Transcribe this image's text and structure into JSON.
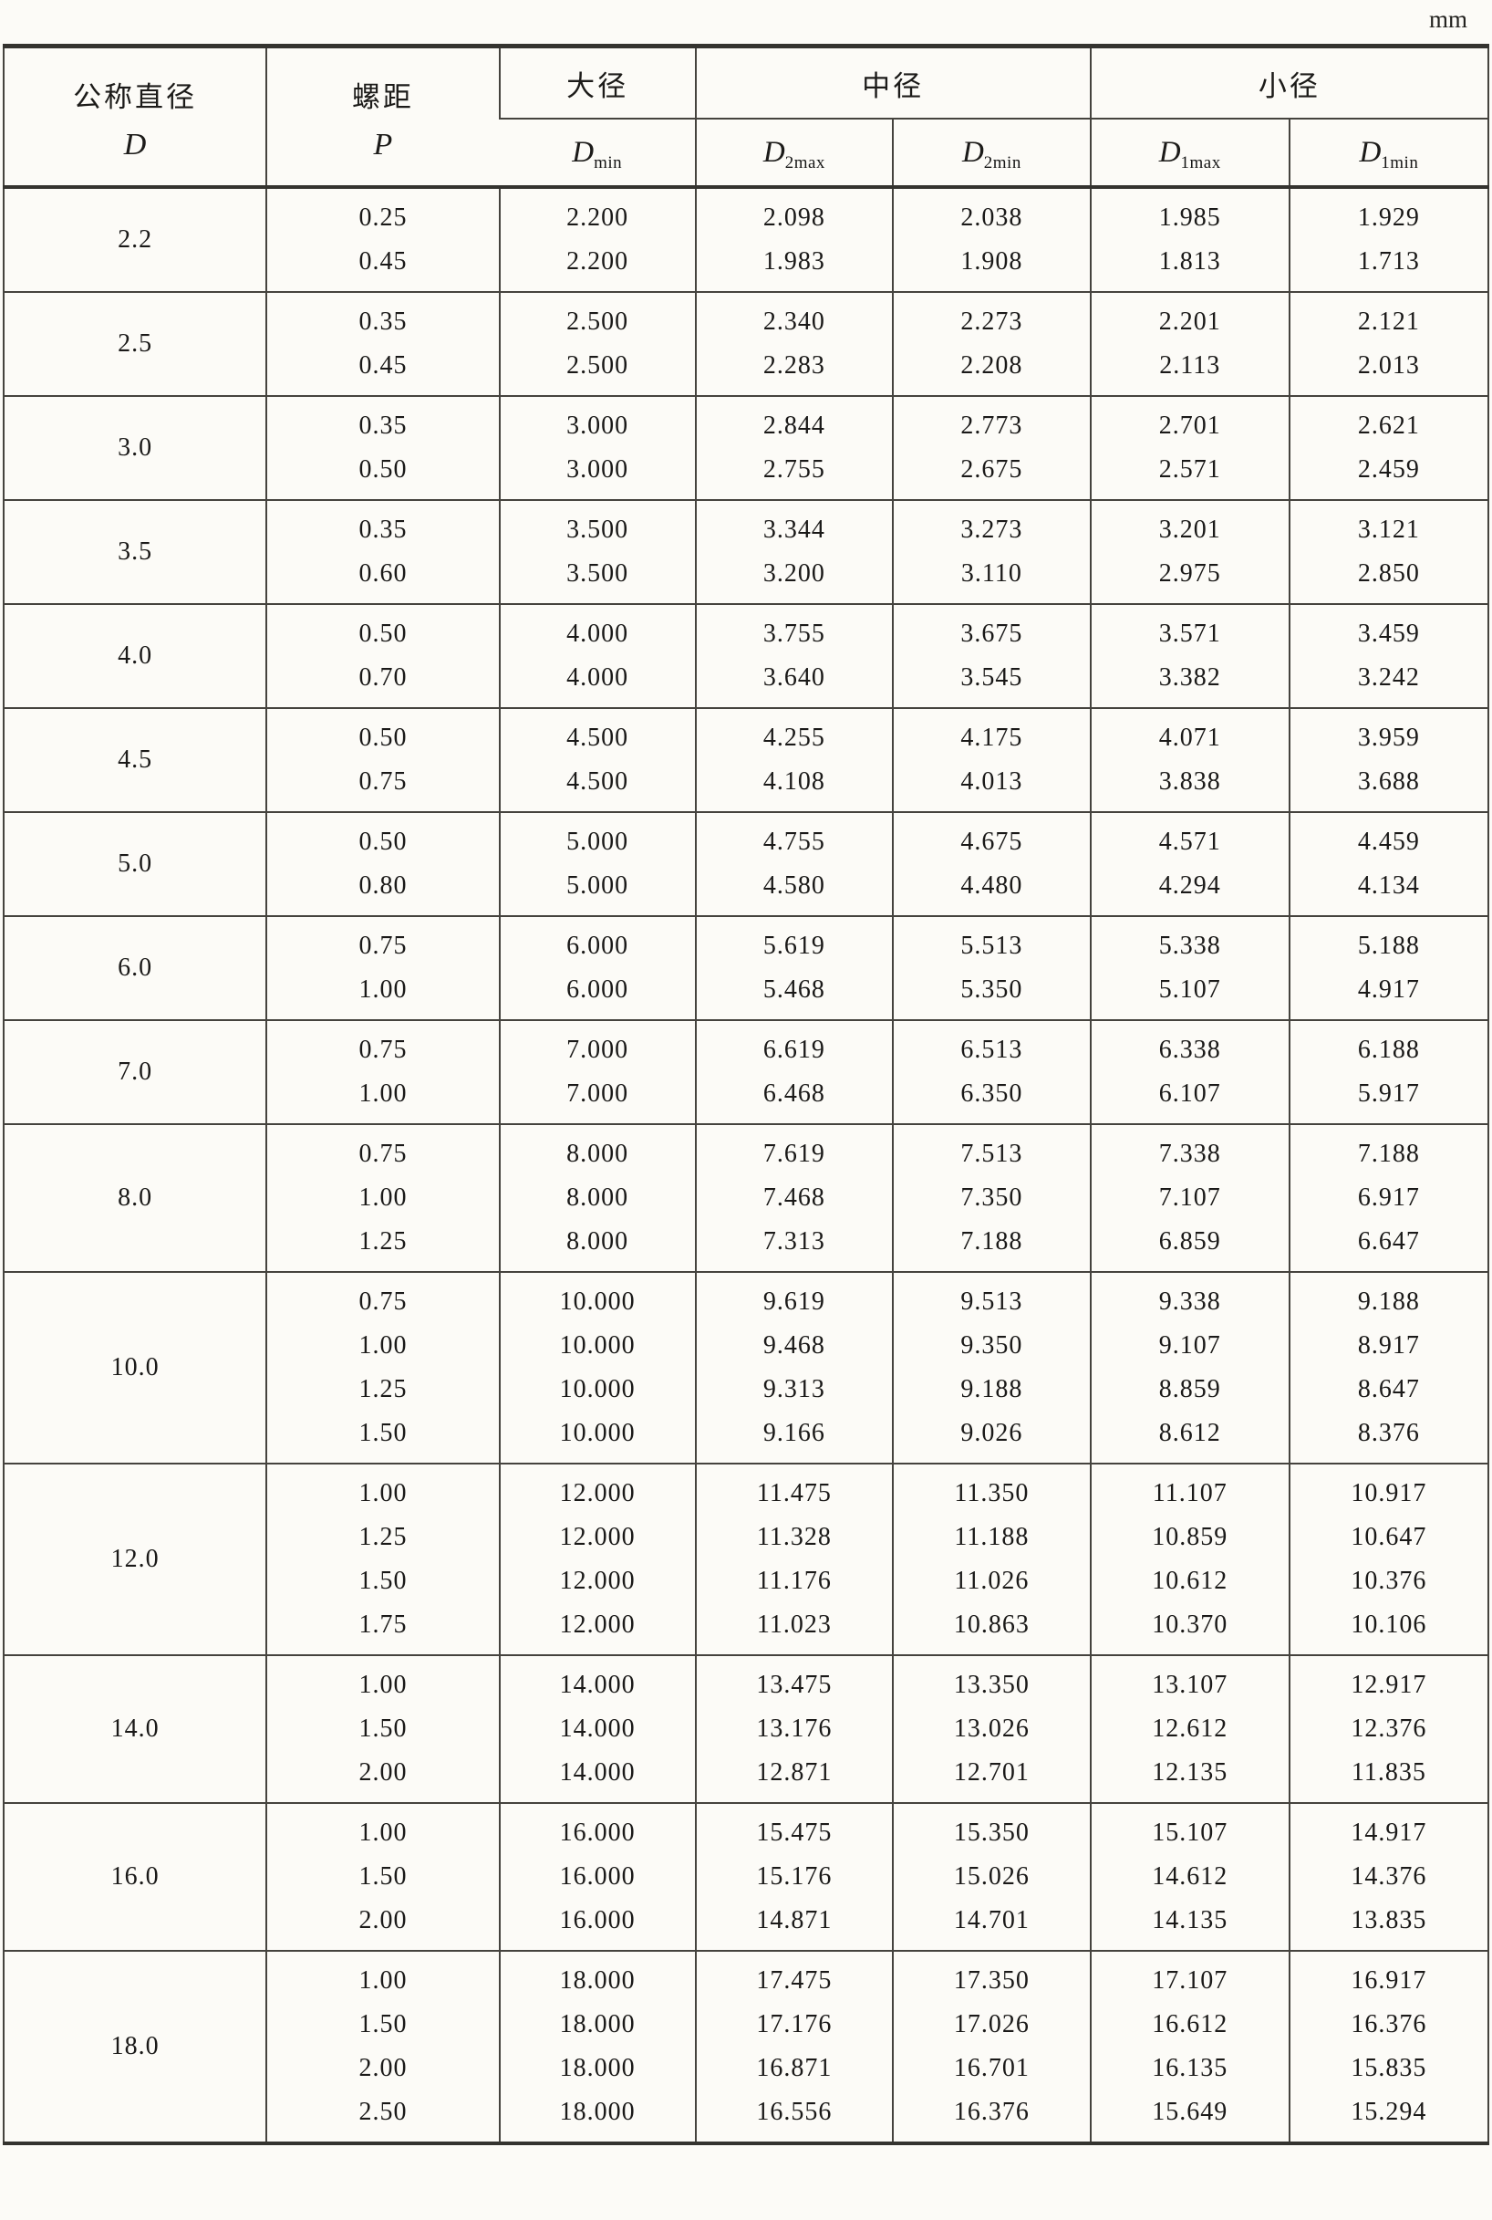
{
  "unit_label": "mm",
  "colors": {
    "paper": "#fcfbf7",
    "ink": "#34332f",
    "grid": "#45433e"
  },
  "table": {
    "header": {
      "nominal": {
        "line1": "公称直径",
        "line2": "D"
      },
      "pitch": {
        "line1": "螺距",
        "line2": "P"
      },
      "major": {
        "label": "大径",
        "sub": {
          "base": "D",
          "sub": "min"
        }
      },
      "middle": {
        "label": "中径",
        "subs": [
          {
            "base": "D",
            "sub": "2max"
          },
          {
            "base": "D",
            "sub": "2min"
          }
        ]
      },
      "minor": {
        "label": "小径",
        "subs": [
          {
            "base": "D",
            "sub": "1max"
          },
          {
            "base": "D",
            "sub": "1min"
          }
        ]
      }
    },
    "groups": [
      {
        "d": "2.2",
        "rows": [
          [
            "0.25",
            "2.200",
            "2.098",
            "2.038",
            "1.985",
            "1.929"
          ],
          [
            "0.45",
            "2.200",
            "1.983",
            "1.908",
            "1.813",
            "1.713"
          ]
        ]
      },
      {
        "d": "2.5",
        "rows": [
          [
            "0.35",
            "2.500",
            "2.340",
            "2.273",
            "2.201",
            "2.121"
          ],
          [
            "0.45",
            "2.500",
            "2.283",
            "2.208",
            "2.113",
            "2.013"
          ]
        ]
      },
      {
        "d": "3.0",
        "rows": [
          [
            "0.35",
            "3.000",
            "2.844",
            "2.773",
            "2.701",
            "2.621"
          ],
          [
            "0.50",
            "3.000",
            "2.755",
            "2.675",
            "2.571",
            "2.459"
          ]
        ]
      },
      {
        "d": "3.5",
        "rows": [
          [
            "0.35",
            "3.500",
            "3.344",
            "3.273",
            "3.201",
            "3.121"
          ],
          [
            "0.60",
            "3.500",
            "3.200",
            "3.110",
            "2.975",
            "2.850"
          ]
        ]
      },
      {
        "d": "4.0",
        "rows": [
          [
            "0.50",
            "4.000",
            "3.755",
            "3.675",
            "3.571",
            "3.459"
          ],
          [
            "0.70",
            "4.000",
            "3.640",
            "3.545",
            "3.382",
            "3.242"
          ]
        ]
      },
      {
        "d": "4.5",
        "rows": [
          [
            "0.50",
            "4.500",
            "4.255",
            "4.175",
            "4.071",
            "3.959"
          ],
          [
            "0.75",
            "4.500",
            "4.108",
            "4.013",
            "3.838",
            "3.688"
          ]
        ]
      },
      {
        "d": "5.0",
        "rows": [
          [
            "0.50",
            "5.000",
            "4.755",
            "4.675",
            "4.571",
            "4.459"
          ],
          [
            "0.80",
            "5.000",
            "4.580",
            "4.480",
            "4.294",
            "4.134"
          ]
        ]
      },
      {
        "d": "6.0",
        "rows": [
          [
            "0.75",
            "6.000",
            "5.619",
            "5.513",
            "5.338",
            "5.188"
          ],
          [
            "1.00",
            "6.000",
            "5.468",
            "5.350",
            "5.107",
            "4.917"
          ]
        ]
      },
      {
        "d": "7.0",
        "rows": [
          [
            "0.75",
            "7.000",
            "6.619",
            "6.513",
            "6.338",
            "6.188"
          ],
          [
            "1.00",
            "7.000",
            "6.468",
            "6.350",
            "6.107",
            "5.917"
          ]
        ]
      },
      {
        "d": "8.0",
        "rows": [
          [
            "0.75",
            "8.000",
            "7.619",
            "7.513",
            "7.338",
            "7.188"
          ],
          [
            "1.00",
            "8.000",
            "7.468",
            "7.350",
            "7.107",
            "6.917"
          ],
          [
            "1.25",
            "8.000",
            "7.313",
            "7.188",
            "6.859",
            "6.647"
          ]
        ]
      },
      {
        "d": "10.0",
        "rows": [
          [
            "0.75",
            "10.000",
            "9.619",
            "9.513",
            "9.338",
            "9.188"
          ],
          [
            "1.00",
            "10.000",
            "9.468",
            "9.350",
            "9.107",
            "8.917"
          ],
          [
            "1.25",
            "10.000",
            "9.313",
            "9.188",
            "8.859",
            "8.647"
          ],
          [
            "1.50",
            "10.000",
            "9.166",
            "9.026",
            "8.612",
            "8.376"
          ]
        ]
      },
      {
        "d": "12.0",
        "rows": [
          [
            "1.00",
            "12.000",
            "11.475",
            "11.350",
            "11.107",
            "10.917"
          ],
          [
            "1.25",
            "12.000",
            "11.328",
            "11.188",
            "10.859",
            "10.647"
          ],
          [
            "1.50",
            "12.000",
            "11.176",
            "11.026",
            "10.612",
            "10.376"
          ],
          [
            "1.75",
            "12.000",
            "11.023",
            "10.863",
            "10.370",
            "10.106"
          ]
        ]
      },
      {
        "d": "14.0",
        "rows": [
          [
            "1.00",
            "14.000",
            "13.475",
            "13.350",
            "13.107",
            "12.917"
          ],
          [
            "1.50",
            "14.000",
            "13.176",
            "13.026",
            "12.612",
            "12.376"
          ],
          [
            "2.00",
            "14.000",
            "12.871",
            "12.701",
            "12.135",
            "11.835"
          ]
        ]
      },
      {
        "d": "16.0",
        "rows": [
          [
            "1.00",
            "16.000",
            "15.475",
            "15.350",
            "15.107",
            "14.917"
          ],
          [
            "1.50",
            "16.000",
            "15.176",
            "15.026",
            "14.612",
            "14.376"
          ],
          [
            "2.00",
            "16.000",
            "14.871",
            "14.701",
            "14.135",
            "13.835"
          ]
        ]
      },
      {
        "d": "18.0",
        "rows": [
          [
            "1.00",
            "18.000",
            "17.475",
            "17.350",
            "17.107",
            "16.917"
          ],
          [
            "1.50",
            "18.000",
            "17.176",
            "17.026",
            "16.612",
            "16.376"
          ],
          [
            "2.00",
            "18.000",
            "16.871",
            "16.701",
            "16.135",
            "15.835"
          ],
          [
            "2.50",
            "18.000",
            "16.556",
            "16.376",
            "15.649",
            "15.294"
          ]
        ]
      }
    ]
  }
}
